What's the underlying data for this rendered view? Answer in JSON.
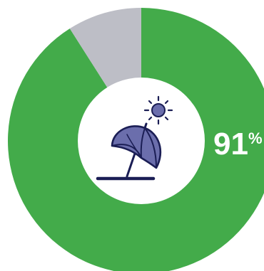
{
  "chart_data": {
    "type": "pie",
    "variant": "donut",
    "slices": [
      {
        "value": 91,
        "color": "#43ab4a"
      },
      {
        "value": 9,
        "color": "#bdbec6"
      }
    ],
    "label_value": "91",
    "label_unit": "%",
    "center_icon": "beach-umbrella-sun-icon",
    "colors": {
      "primary": "#43ab4a",
      "remainder": "#bdbec6",
      "icon_fill": "#6b6eac",
      "icon_stroke": "#1b1e55",
      "center": "#ffffff"
    }
  }
}
